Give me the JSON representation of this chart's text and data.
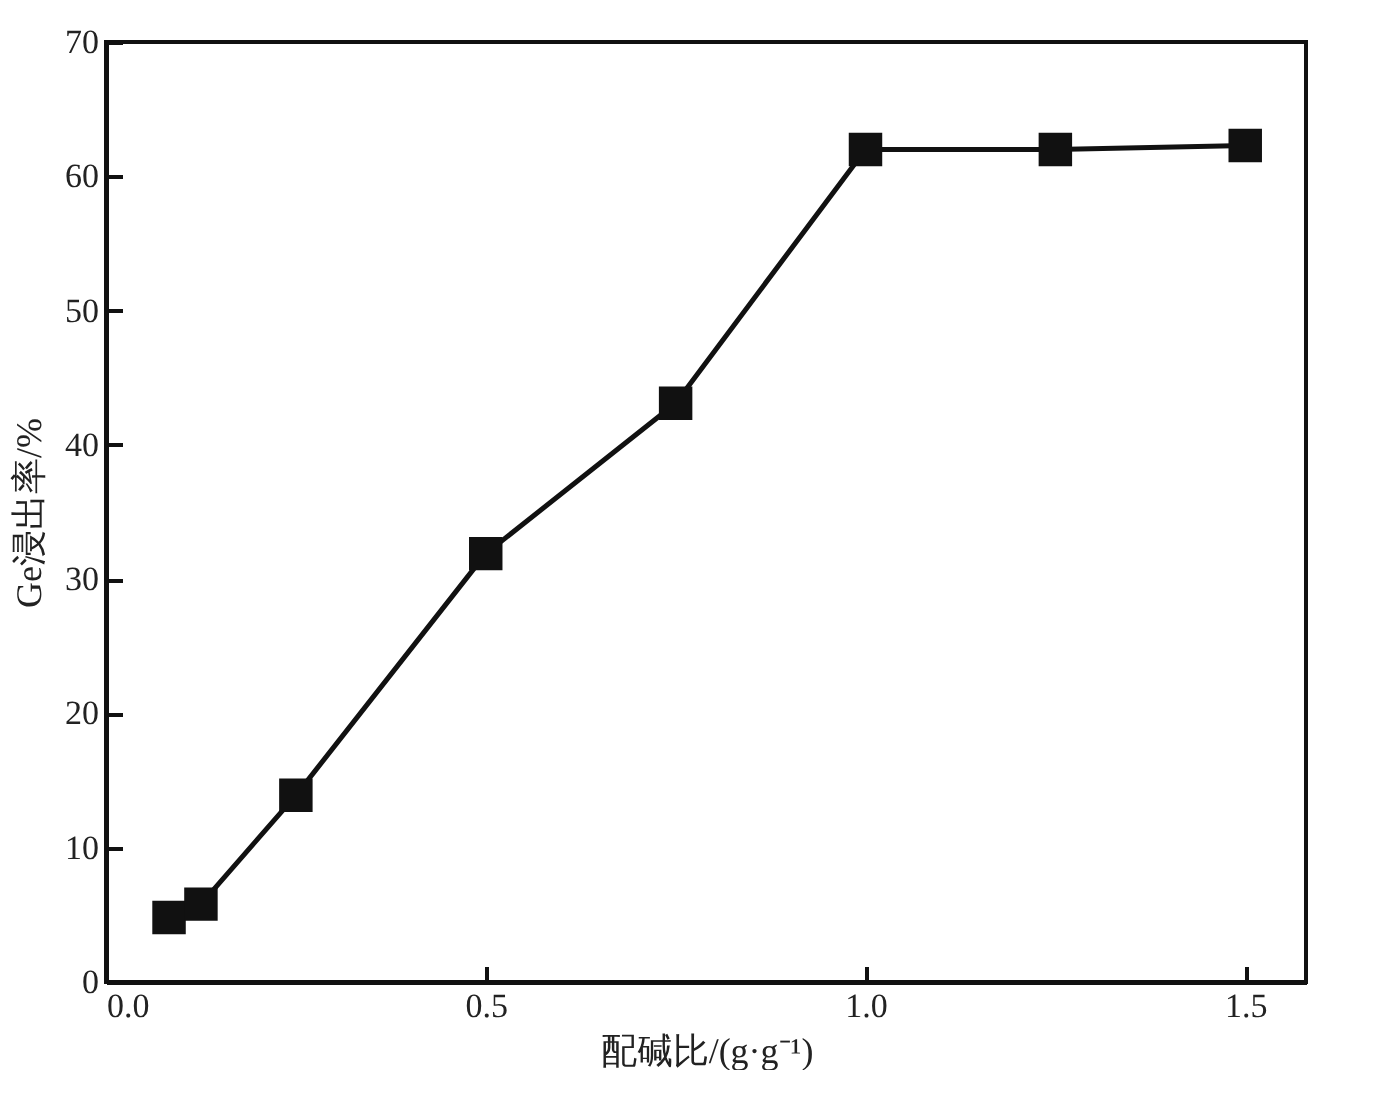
{
  "chart_data": {
    "type": "line",
    "xlabel": "配碱比/(g·g⁻¹)",
    "ylabel": "Ge浸出率/%",
    "x": [
      0.083,
      0.125,
      0.25,
      0.5,
      0.75,
      1.0,
      1.25,
      1.5
    ],
    "series": [
      {
        "color": "#111111",
        "values": [
          4.8,
          5.8,
          13.9,
          31.9,
          43.1,
          62.0,
          62.0,
          62.3
        ]
      }
    ],
    "xlim": [
      0,
      1.58
    ],
    "xticks": [
      {
        "value": 0,
        "label": "0.0"
      },
      0.5,
      {
        "value": 1,
        "label": "1.0"
      },
      1.5
    ],
    "ylim": [
      0,
      70
    ],
    "yticks": [
      0,
      10,
      20,
      30,
      40,
      50,
      60,
      70
    ],
    "marker": "square",
    "line_style": "solid"
  }
}
